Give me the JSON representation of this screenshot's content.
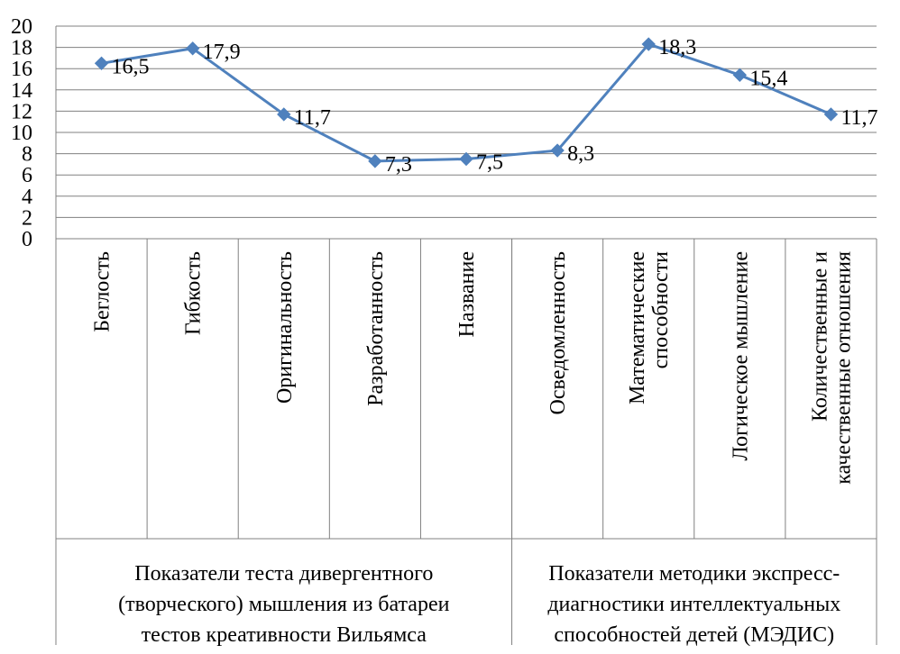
{
  "chart_data": {
    "type": "line",
    "title": "",
    "xlabel": "",
    "ylabel": "",
    "ylim": [
      0,
      20
    ],
    "yticks": [
      "0",
      "2",
      "4",
      "6",
      "8",
      "10",
      "12",
      "14",
      "16",
      "18",
      "20"
    ],
    "grid": true,
    "legend": "none",
    "colors": {
      "series": "#4F81BD",
      "grid": "#808080",
      "text": "#000000"
    },
    "categories": [
      [
        "Беглость"
      ],
      [
        "Гибкость"
      ],
      [
        "Оригинальность"
      ],
      [
        "Разработанность"
      ],
      [
        "Название"
      ],
      [
        "Осведомленность"
      ],
      [
        "Математические",
        "способности"
      ],
      [
        "Логическое мышление"
      ],
      [
        "Количественные и",
        "качественные отношения"
      ]
    ],
    "groups": [
      {
        "lines": [
          "Показатели теста дивергентного",
          "(творческого) мышления из батареи",
          "тестов креативности Вильямса"
        ],
        "span": 5
      },
      {
        "lines": [
          "Показатели методики экспресс-",
          "диагностики интеллектуальных",
          "способностей детей (МЭДИС)"
        ],
        "span": 4
      }
    ],
    "series": [
      {
        "values": [
          16.5,
          17.9,
          11.7,
          7.3,
          7.5,
          8.3,
          18.3,
          15.4,
          11.7
        ],
        "data_labels": [
          "16,5",
          "17,9",
          "11,7",
          "7,3",
          "7,5",
          "8,3",
          "18,3",
          "15,4",
          "11,7"
        ]
      }
    ]
  }
}
